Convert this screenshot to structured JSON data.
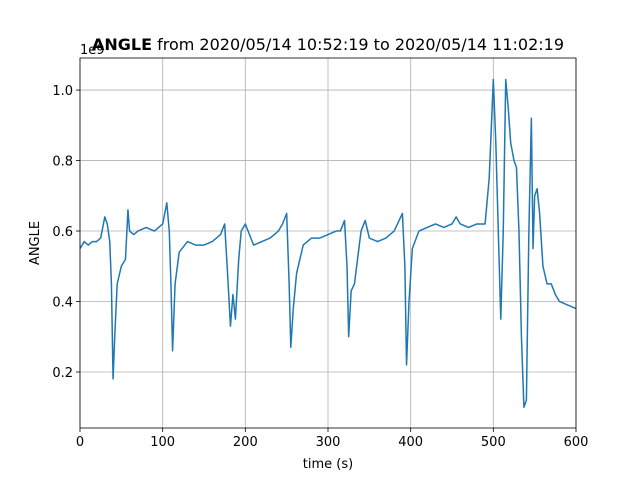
{
  "chart_data": {
    "type": "line",
    "title": {
      "bold": "ANGLE",
      "rest": "from 2020/05/14 10:52:19 to 2020/05/14 11:02:19"
    },
    "offset_text": "1e9",
    "xlabel": "time (s)",
    "ylabel": "ANGLE",
    "xlim": [
      0,
      600
    ],
    "xticks": [
      0,
      100,
      200,
      300,
      400,
      500,
      600
    ],
    "ylim": [
      0.041,
      1.091
    ],
    "yticks": [
      0.2,
      0.4,
      0.6,
      0.8,
      {
        "value": 1,
        "label": "1.0"
      }
    ],
    "grid": true,
    "series": [
      {
        "color": "#1f77b4",
        "x": [
          0,
          5,
          10,
          15,
          20,
          25,
          30,
          33,
          36,
          38,
          40,
          42,
          45,
          50,
          55,
          58,
          60,
          65,
          70,
          80,
          90,
          100,
          105,
          108,
          110,
          112,
          115,
          120,
          130,
          140,
          150,
          160,
          170,
          175,
          178,
          182,
          185,
          188,
          192,
          195,
          200,
          210,
          220,
          230,
          240,
          245,
          250,
          253,
          255,
          258,
          262,
          270,
          280,
          290,
          300,
          310,
          315,
          320,
          323,
          325,
          328,
          332,
          340,
          345,
          350,
          360,
          370,
          380,
          390,
          393,
          395,
          398,
          402,
          410,
          420,
          430,
          440,
          450,
          455,
          460,
          470,
          480,
          490,
          495,
          500,
          503,
          506,
          509,
          512,
          515,
          518,
          521,
          525,
          528,
          531,
          534,
          537,
          540,
          543,
          546,
          548,
          550,
          553,
          556,
          560,
          565,
          570,
          575,
          580,
          590,
          600
        ],
        "values": [
          0.55,
          0.57,
          0.56,
          0.57,
          0.57,
          0.58,
          0.64,
          0.62,
          0.57,
          0.45,
          0.18,
          0.3,
          0.45,
          0.5,
          0.52,
          0.66,
          0.6,
          0.59,
          0.6,
          0.61,
          0.6,
          0.62,
          0.68,
          0.6,
          0.45,
          0.26,
          0.45,
          0.54,
          0.57,
          0.56,
          0.56,
          0.57,
          0.59,
          0.62,
          0.5,
          0.33,
          0.42,
          0.35,
          0.52,
          0.6,
          0.62,
          0.56,
          0.57,
          0.58,
          0.6,
          0.62,
          0.65,
          0.45,
          0.27,
          0.38,
          0.48,
          0.56,
          0.58,
          0.58,
          0.59,
          0.6,
          0.6,
          0.63,
          0.5,
          0.3,
          0.43,
          0.45,
          0.6,
          0.63,
          0.58,
          0.57,
          0.58,
          0.6,
          0.65,
          0.5,
          0.22,
          0.4,
          0.55,
          0.6,
          0.61,
          0.62,
          0.61,
          0.62,
          0.64,
          0.62,
          0.61,
          0.62,
          0.62,
          0.75,
          1.03,
          0.85,
          0.6,
          0.35,
          0.6,
          1.03,
          0.95,
          0.85,
          0.8,
          0.78,
          0.6,
          0.3,
          0.1,
          0.12,
          0.6,
          0.92,
          0.55,
          0.7,
          0.72,
          0.65,
          0.5,
          0.45,
          0.45,
          0.42,
          0.4,
          0.39,
          0.38
        ]
      }
    ]
  }
}
